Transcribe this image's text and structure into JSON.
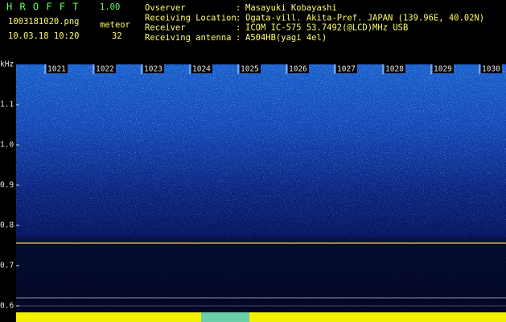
{
  "header": {
    "title": "H R O F F T",
    "version": "1.00",
    "filename": "1003181020.png",
    "datetime": "10.03.18 10:20",
    "meteor_label": "meteor",
    "meteor_count": "32",
    "info": [
      {
        "label": "Ovserver",
        "value": "Masayuki Kobayashi"
      },
      {
        "label": "Receiving Location",
        "value": "Ogata-vill. Akita-Pref. JAPAN (139.96E, 40.02N)"
      },
      {
        "label": "Receiver",
        "value": "ICOM IC-575 53.7492(@LCD)MHz USB"
      },
      {
        "label": "Receiving antenna",
        "value": "A504HB(yagi 4el)"
      }
    ],
    "separator": ":"
  },
  "spectrogram": {
    "y_unit": "kHz",
    "y_labels": [
      "1.1",
      "1.0",
      "0.9",
      "0.8",
      "0.7",
      "0.6"
    ],
    "x_labels": [
      "1021",
      "1022",
      "1023",
      "1024",
      "1025",
      "1026",
      "1027",
      "1028",
      "1029",
      "1030"
    ]
  }
}
